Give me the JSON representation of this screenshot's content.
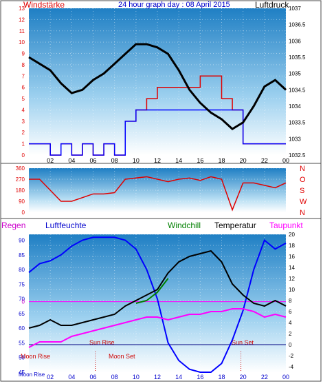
{
  "header": {
    "left_label": "Windstärke",
    "title": "24 hour graph day : 08 April 2015",
    "right_label": "Luftdruck"
  },
  "colors": {
    "wind_axis": "#e00000",
    "pressure_axis": "#000000",
    "title": "#0000cc",
    "regen": "#cc00cc",
    "luftfeuchte": "#0000cc",
    "windchill": "#008000",
    "temperatur": "#000000",
    "taupunkt": "#ff00ff",
    "sun_moon": "#cc0000"
  },
  "panel3_header": {
    "regen": "Regen",
    "luftfeuchte": "Luftfeuchte",
    "windchill": "Windchill",
    "temperatur": "Temperatur",
    "taupunkt": "Taupunkt"
  },
  "annotations": {
    "moon_rise": "Moon Rise",
    "moon_set": "Moon Set",
    "sun_rise": "Sun Rise",
    "sun_set": "Sun Set",
    "moon_rise_axis": "Moon Rise"
  },
  "chart_data": [
    {
      "type": "line",
      "panel": "wind_pressure",
      "x_ticks": [
        "02",
        "04",
        "06",
        "08",
        "10",
        "12",
        "14",
        "16",
        "18",
        "20",
        "22",
        "00"
      ],
      "left_axis": {
        "label": "Windstärke",
        "ticks": [
          "0",
          "1",
          "2",
          "3",
          "4",
          "5",
          "6",
          "7",
          "8",
          "9",
          "10",
          "11",
          "12",
          "13"
        ],
        "ylim": [
          0,
          13
        ]
      },
      "right_axis": {
        "label": "Luftdruck",
        "ticks": [
          "1032.5",
          "1033",
          "1033.5",
          "1034",
          "1034.5",
          "1035",
          "1035.5",
          "1036",
          "1036.5",
          "1037"
        ],
        "ylim": [
          1032.5,
          1037
        ]
      },
      "series": [
        {
          "name": "Luftdruck",
          "axis": "right",
          "x": [
            0,
            1,
            2,
            3,
            4,
            5,
            6,
            7,
            8,
            9,
            10,
            11,
            12,
            13,
            14,
            15,
            16,
            17,
            18,
            19,
            20,
            21,
            22,
            23,
            24
          ],
          "y": [
            1035.5,
            1035.3,
            1035.1,
            1034.7,
            1034.4,
            1034.5,
            1034.8,
            1035.0,
            1035.3,
            1035.6,
            1035.9,
            1035.9,
            1035.8,
            1035.6,
            1035.1,
            1034.5,
            1034.1,
            1033.8,
            1033.6,
            1033.3,
            1033.5,
            1034.0,
            1034.6,
            1034.8,
            1034.5
          ]
        },
        {
          "axis": "left",
          "x": [
            0,
            1,
            2,
            3,
            4,
            5,
            6,
            7,
            8,
            9,
            10,
            11,
            12,
            13,
            14,
            15,
            16,
            17,
            18,
            19,
            20,
            21,
            22,
            23,
            24
          ],
          "y": [
            1,
            1,
            0,
            1,
            0,
            1,
            0,
            1,
            0,
            3,
            4,
            5,
            6,
            6,
            6,
            6,
            7,
            7,
            5,
            4,
            1,
            1,
            1,
            1,
            1
          ]
        }
      ]
    },
    {
      "type": "line",
      "panel": "wind_direction",
      "left_axis": {
        "ticks": [
          "0",
          "90",
          "180",
          "270",
          "360"
        ],
        "ylim": [
          0,
          360
        ]
      },
      "right_labels": [
        "N",
        "W",
        "S",
        "O",
        "N"
      ],
      "series": [
        {
          "x": [
            0,
            1,
            2,
            3,
            4,
            5,
            6,
            7,
            8,
            9,
            10,
            11,
            12,
            13,
            14,
            15,
            16,
            17,
            18,
            19,
            20,
            21,
            22,
            23,
            24
          ],
          "y": [
            270,
            270,
            180,
            90,
            90,
            120,
            150,
            150,
            160,
            270,
            280,
            290,
            270,
            250,
            270,
            280,
            260,
            290,
            270,
            20,
            240,
            240,
            220,
            200,
            240
          ]
        }
      ]
    },
    {
      "type": "line",
      "panel": "temperature_humidity",
      "x_ticks": [
        "02",
        "04",
        "06",
        "08",
        "10",
        "12",
        "14",
        "16",
        "18",
        "20",
        "22",
        "00"
      ],
      "left_axis": {
        "ticks": [
          "45",
          "50",
          "55",
          "60",
          "65",
          "70",
          "75",
          "80",
          "85",
          "90"
        ],
        "ylim": [
          45,
          92
        ],
        "label": "Luftfeuchte"
      },
      "right_axis": {
        "ticks": [
          "-4",
          "-2",
          "0",
          "2",
          "4",
          "6",
          "8",
          "10",
          "12",
          "14",
          "16",
          "18",
          "20"
        ],
        "ylim": [
          -5,
          20
        ]
      },
      "regen_marker": "0",
      "series": [
        {
          "name": "Luftfeuchte",
          "axis": "left",
          "x": [
            0,
            1,
            2,
            3,
            4,
            5,
            6,
            7,
            8,
            9,
            10,
            11,
            12,
            13,
            14,
            15,
            16,
            17,
            18,
            19,
            20,
            21,
            22,
            23,
            24
          ],
          "y": [
            79,
            82,
            83,
            85,
            88,
            90,
            91,
            91,
            91,
            90,
            87,
            80,
            70,
            55,
            49,
            46,
            45,
            45,
            48,
            56,
            66,
            80,
            90,
            87,
            89
          ]
        },
        {
          "name": "Temperatur",
          "axis": "right",
          "x": [
            0,
            1,
            2,
            3,
            4,
            5,
            6,
            7,
            8,
            9,
            10,
            11,
            12,
            13,
            14,
            15,
            16,
            17,
            18,
            19,
            20,
            21,
            22,
            23,
            24
          ],
          "y": [
            3,
            3.5,
            4.5,
            3.5,
            3.5,
            4,
            4.5,
            5,
            5.5,
            7,
            8,
            9,
            10,
            13,
            15,
            16,
            16.5,
            17,
            15,
            11,
            9,
            7.5,
            7,
            8,
            7
          ]
        },
        {
          "name": "Windchill",
          "axis": "right",
          "x": [
            10,
            11,
            12,
            13
          ],
          "y": [
            7.5,
            8,
            9.5,
            12
          ]
        },
        {
          "name": "Taupunkt",
          "axis": "right",
          "x": [
            0,
            1,
            2,
            3,
            4,
            5,
            6,
            7,
            8,
            9,
            10,
            11,
            12,
            13,
            14,
            15,
            16,
            17,
            18,
            19,
            20,
            21,
            22,
            23,
            24
          ],
          "y": [
            -0.5,
            0.5,
            0.5,
            0.5,
            1.5,
            2,
            2.5,
            3,
            3.5,
            4,
            4.5,
            5,
            5,
            4.5,
            5,
            5.5,
            5.5,
            6,
            6,
            6.5,
            6.5,
            6,
            5,
            5.5,
            5
          ]
        }
      ]
    }
  ]
}
